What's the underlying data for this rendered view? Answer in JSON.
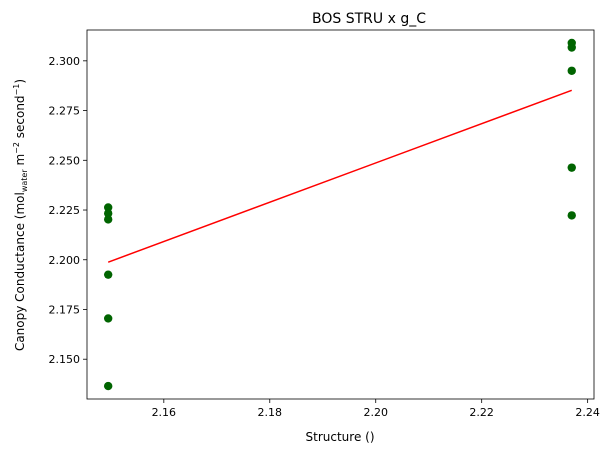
{
  "chart_data": {
    "type": "scatter",
    "title": "BOS STRU x g_C",
    "xlabel": "Structure ()",
    "ylabel": {
      "prefix": "Canopy Conductance (mol",
      "subscript": "water",
      "mid": " m",
      "sup1": "−2",
      "mid2": " second",
      "sup2": "−1",
      "suffix": ")"
    },
    "xlim": [
      2.1455,
      2.2412
    ],
    "ylim": [
      2.13,
      2.3155
    ],
    "xticks": [
      {
        "value": 2.16,
        "label": "2.16"
      },
      {
        "value": 2.18,
        "label": "2.18"
      },
      {
        "value": 2.2,
        "label": "2.20"
      },
      {
        "value": 2.22,
        "label": "2.22"
      },
      {
        "value": 2.24,
        "label": "2.24"
      }
    ],
    "yticks": [
      {
        "value": 2.15,
        "label": "2.150"
      },
      {
        "value": 2.175,
        "label": "2.175"
      },
      {
        "value": 2.2,
        "label": "2.200"
      },
      {
        "value": 2.225,
        "label": "2.225"
      },
      {
        "value": 2.25,
        "label": "2.250"
      },
      {
        "value": 2.275,
        "label": "2.275"
      },
      {
        "value": 2.3,
        "label": "2.300"
      }
    ],
    "points": [
      {
        "x": 2.1495,
        "y": 2.2263
      },
      {
        "x": 2.1495,
        "y": 2.2233
      },
      {
        "x": 2.1495,
        "y": 2.2203
      },
      {
        "x": 2.1495,
        "y": 2.1925
      },
      {
        "x": 2.1495,
        "y": 2.1705
      },
      {
        "x": 2.1495,
        "y": 2.1365
      },
      {
        "x": 2.237,
        "y": 2.309
      },
      {
        "x": 2.237,
        "y": 2.3067
      },
      {
        "x": 2.237,
        "y": 2.295
      },
      {
        "x": 2.237,
        "y": 2.2463
      },
      {
        "x": 2.237,
        "y": 2.2223
      }
    ],
    "fit_line": {
      "x": [
        2.1495,
        2.237
      ],
      "y": [
        2.1988,
        2.2852
      ]
    },
    "colors": {
      "points": "#006400",
      "fit_line": "#ff0000"
    },
    "grid": false,
    "legend": "none"
  }
}
